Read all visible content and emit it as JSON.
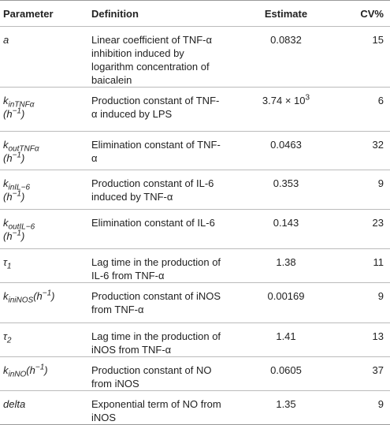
{
  "table": {
    "header": [
      "Parameter",
      "Definition",
      "Estimate",
      "CV%"
    ],
    "rows": [
      {
        "parameter": [
          "a"
        ],
        "definition": "Linear coefficient of TNF-α inhibition induced by logarithm concentration of baicalein",
        "estimate": [
          "0.0832"
        ],
        "cv": "15"
      },
      {
        "parameter": [
          "k",
          "inTNFα",
          "(h",
          "−1",
          ")"
        ],
        "definition": "Production constant of TNF-α induced by LPS",
        "estimate": [
          "3.74 × 10",
          "3"
        ],
        "cv": "6"
      },
      {
        "parameter": [
          "k",
          "outTNFα",
          "(h",
          "−1",
          ")"
        ],
        "definition": "Elimination constant of TNF-α",
        "estimate": [
          "0.0463"
        ],
        "cv": "32"
      },
      {
        "parameter": [
          "k",
          "inIL−6",
          "(h",
          "−1",
          ")"
        ],
        "definition": "Production constant of IL-6 induced by TNF-α",
        "estimate": [
          "0.353"
        ],
        "cv": "9"
      },
      {
        "parameter": [
          "k",
          "outIL−6",
          "(h",
          "−1",
          ")"
        ],
        "definition": "Elimination constant of IL-6",
        "estimate": [
          "0.143"
        ],
        "cv": "23"
      },
      {
        "parameter": [
          "τ",
          "1"
        ],
        "definition": "Lag time in the production of IL-6 from TNF-α",
        "estimate": [
          "1.38"
        ],
        "cv": "11"
      },
      {
        "parameter": [
          "k",
          "iniNOS",
          "(h",
          "−1",
          ")"
        ],
        "definition": "Production constant of iNOS from TNF-α",
        "estimate": [
          "0.00169"
        ],
        "cv": "9"
      },
      {
        "parameter": [
          "τ",
          "2"
        ],
        "definition": "Lag time in the production of iNOS from TNF-α",
        "estimate": [
          "1.41"
        ],
        "cv": "13"
      },
      {
        "parameter": [
          "k",
          "inNO",
          "(h",
          "−1",
          ")"
        ],
        "definition": "Production constant of NO from iNOS",
        "estimate": [
          "0.0605"
        ],
        "cv": "37"
      },
      {
        "parameter": [
          "delta"
        ],
        "definition": "Exponential term of NO from iNOS",
        "estimate": [
          "1.35"
        ],
        "cv": "9"
      }
    ]
  }
}
